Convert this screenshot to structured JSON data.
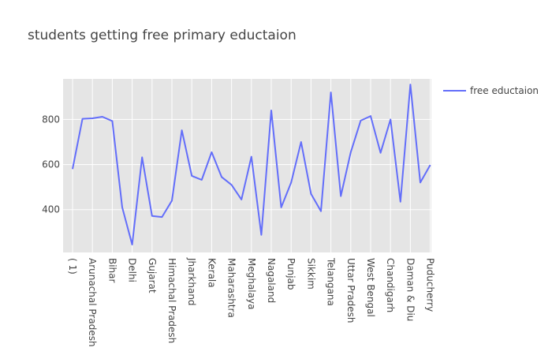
{
  "chart_data": {
    "type": "line",
    "title": "students getting free primary eductaion",
    "xlabel": "",
    "ylabel": "",
    "ylim": [
      210,
      980
    ],
    "yticks": [
      400,
      600,
      800
    ],
    "grid": true,
    "legend_position": "top-right",
    "colors": {
      "line": "#636efa",
      "plot_bg": "#e5e5e5",
      "grid": "#ffffff"
    },
    "tick_labels": [
      "( 1)",
      "Arunachal Pradesh",
      "Bihar",
      "Delhi",
      "Gujarat",
      "Himachal Pradesh",
      "Jharkhand",
      "Kerala",
      "Maharashtra",
      "Meghalaya",
      "Nagaland",
      "Punjab",
      "Sikkim",
      "Telangana",
      "Uttar Pradesh",
      "West Bengal",
      "Chandigarh",
      "Daman & Diu",
      "Puducherry"
    ],
    "series": [
      {
        "name": "free eductaion",
        "values": [
          580,
          803,
          805,
          812,
          793,
          410,
          245,
          632,
          372,
          367,
          440,
          752,
          550,
          532,
          655,
          545,
          510,
          445,
          635,
          288,
          840,
          410,
          520,
          700,
          470,
          393,
          920,
          460,
          655,
          795,
          815,
          652,
          800,
          435,
          955,
          520,
          598
        ]
      }
    ]
  }
}
